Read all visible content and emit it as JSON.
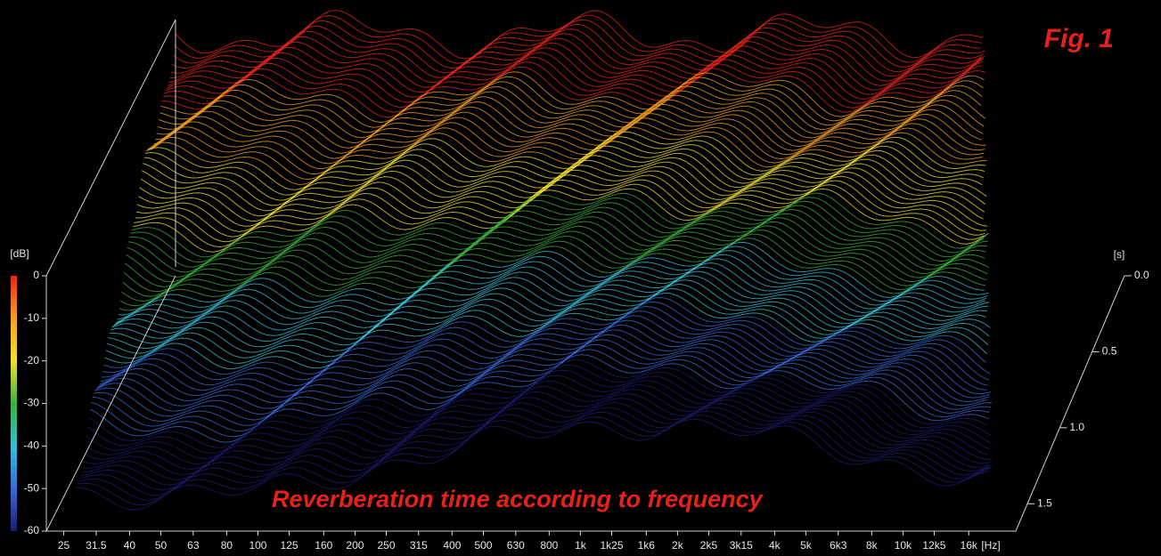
{
  "chart_data": {
    "type": "waterfall",
    "title": "Fig. 1",
    "subtitle": "Reverberation time according to frequency",
    "x_label": "[Hz]",
    "y_label": "[dB]",
    "z_label": "[s]",
    "xscale": "log",
    "xlim": [
      22.5,
      21000
    ],
    "xticks": [
      25,
      31.5,
      40,
      50,
      63,
      80,
      100,
      125,
      160,
      200,
      250,
      315,
      400,
      500,
      630,
      800,
      {
        "value": 1000,
        "label": "1k"
      },
      {
        "value": 1250,
        "label": "1k25"
      },
      {
        "value": 1600,
        "label": "1k6"
      },
      {
        "value": 2000,
        "label": "2k"
      },
      {
        "value": 2500,
        "label": "2k5"
      },
      {
        "value": 3150,
        "label": "3k15"
      },
      {
        "value": 4000,
        "label": "4k"
      },
      {
        "value": 5000,
        "label": "5k"
      },
      {
        "value": 6300,
        "label": "6k3"
      },
      {
        "value": 8000,
        "label": "8k"
      },
      {
        "value": 10000,
        "label": "10k"
      },
      {
        "value": 12500,
        "label": "12k5"
      },
      {
        "value": 16000,
        "label": "16k"
      }
    ],
    "ylim": [
      -60,
      0
    ],
    "yticks": [
      0,
      -10,
      -20,
      -30,
      -40,
      -50,
      -60
    ],
    "zlim": [
      0,
      1.68
    ],
    "zticks": [
      {
        "value": 0,
        "label": "0.0"
      },
      0.5,
      {
        "value": 1,
        "label": "1.0"
      },
      1.5
    ],
    "colormap": [
      "#e8261c",
      "#f4a020",
      "#f2e030",
      "#3cb040",
      "#35c0d8",
      "#3a6ad8",
      "#1c1c70"
    ]
  }
}
